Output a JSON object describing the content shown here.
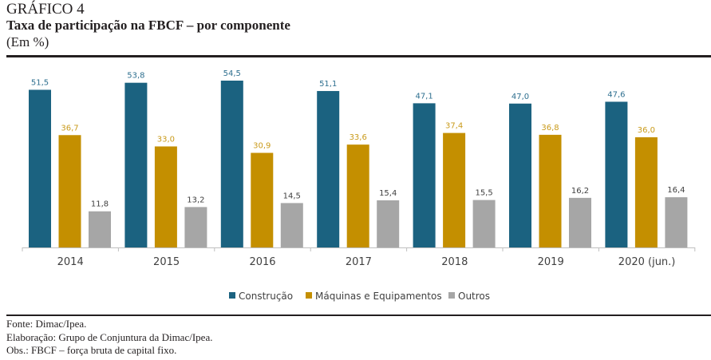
{
  "header": {
    "title": "GRÁFICO 4",
    "subtitle": "Taxa de participação na FBCF – por componente",
    "unit": "(Em %)"
  },
  "chart_data": {
    "type": "bar",
    "title": "Taxa de participação na FBCF – por componente",
    "ylabel": "Em %",
    "xlabel": "",
    "categories": [
      "2014",
      "2015",
      "2016",
      "2017",
      "2018",
      "2019",
      "2020 (jun.)"
    ],
    "series": [
      {
        "name": "Construção",
        "color": "#1b6280",
        "label_color": "#2e6f8f",
        "values": [
          51.5,
          53.8,
          54.5,
          51.1,
          47.1,
          47.0,
          47.6
        ],
        "labels": [
          "51,5",
          "53,8",
          "54,5",
          "51,1",
          "47,1",
          "47,0",
          "47,6"
        ]
      },
      {
        "name": "Máquinas e Equipamentos",
        "color": "#c48f00",
        "label_color": "#c99a1a",
        "values": [
          36.7,
          33.0,
          30.9,
          33.6,
          37.4,
          36.8,
          36.0
        ],
        "labels": [
          "36,7",
          "33,0",
          "30,9",
          "33,6",
          "37,4",
          "36,8",
          "36,0"
        ]
      },
      {
        "name": "Outros",
        "color": "#a6a6a6",
        "label_color": "#404040",
        "values": [
          11.8,
          13.2,
          14.5,
          15.4,
          15.5,
          16.2,
          16.4
        ],
        "labels": [
          "11,8",
          "13,2",
          "14,5",
          "15,4",
          "15,5",
          "16,2",
          "16,4"
        ]
      }
    ],
    "ylim": [
      0,
      55
    ],
    "grid": false,
    "y_axis_visible": false,
    "legend_position": "bottom"
  },
  "footer": {
    "source": "Fonte: Dimac/Ipea.",
    "elaboration": "Elaboração: Grupo de Conjuntura da Dimac/Ipea.",
    "obs": "Obs.: FBCF – força bruta de capital fixo."
  }
}
